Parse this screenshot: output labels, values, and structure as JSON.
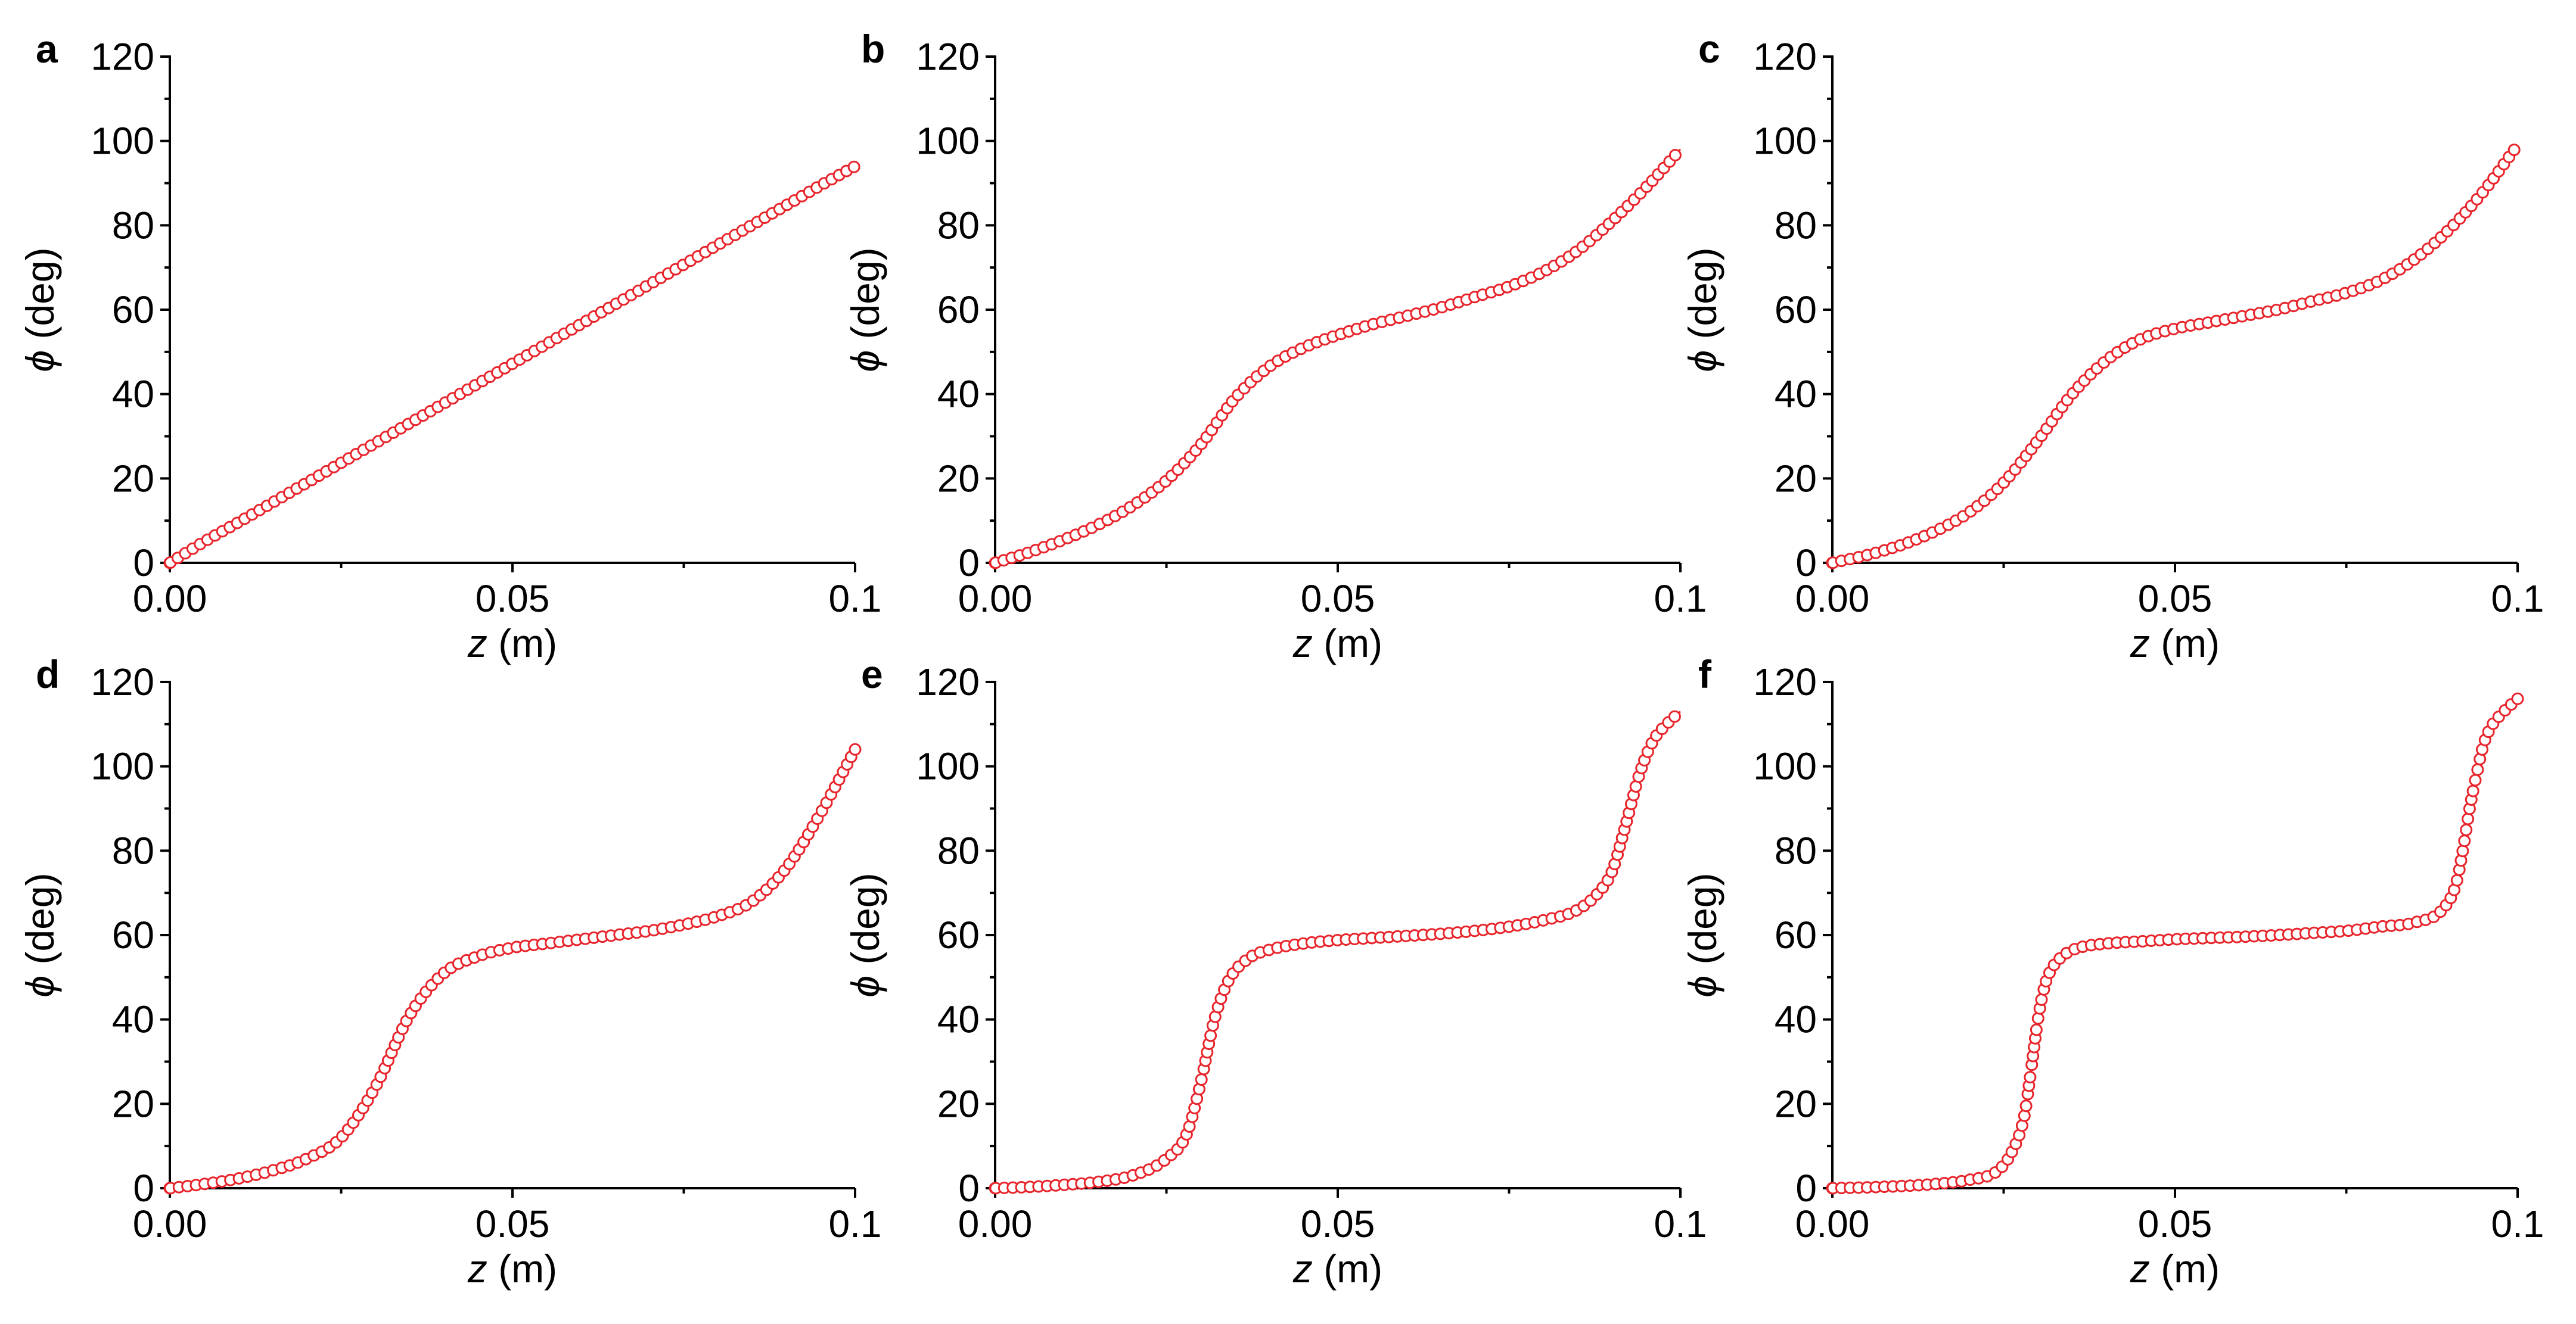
{
  "figure": {
    "marker_color": "#e8242b",
    "marker": "open-circle"
  },
  "chart_data": [
    {
      "panel": "a",
      "type": "scatter",
      "xlabel_symbol": "z",
      "xlabel_unit": " (m)",
      "ylabel_symbol": "ϕ",
      "ylabel_unit": " (deg)",
      "xlim": [
        0,
        0.1
      ],
      "ylim": [
        0,
        120
      ],
      "x_ticks": [
        "0.00",
        "0.05",
        "0.1"
      ],
      "y_ticks": [
        "0",
        "20",
        "40",
        "60",
        "80",
        "100",
        "120"
      ],
      "grid": false,
      "legend": "none",
      "series": [
        {
          "x": [
            0,
            0.005,
            0.01,
            0.015,
            0.02,
            0.025,
            0.03,
            0.035,
            0.04,
            0.045,
            0.05,
            0.055,
            0.06,
            0.065,
            0.07,
            0.075,
            0.08,
            0.085,
            0.09,
            0.095,
            0.1
          ],
          "y": [
            0,
            5,
            9.6,
            14.3,
            19,
            23.7,
            28.4,
            33.1,
            37.8,
            42.5,
            47.2,
            51.9,
            56.6,
            61.3,
            66,
            70.7,
            75.4,
            80.1,
            84.8,
            89.5,
            94
          ]
        }
      ]
    },
    {
      "panel": "b",
      "type": "scatter",
      "xlabel_symbol": "z",
      "xlabel_unit": " (m)",
      "ylabel_symbol": "ϕ",
      "ylabel_unit": " (deg)",
      "xlim": [
        0,
        0.1
      ],
      "ylim": [
        0,
        120
      ],
      "x_ticks": [
        "0.00",
        "0.05",
        "0.1"
      ],
      "y_ticks": [
        "0",
        "20",
        "40",
        "60",
        "80",
        "100",
        "120"
      ],
      "grid": false,
      "legend": "none",
      "series": [
        {
          "x": [
            0,
            0.005,
            0.01,
            0.015,
            0.02,
            0.025,
            0.03,
            0.035,
            0.04,
            0.045,
            0.05,
            0.055,
            0.06,
            0.065,
            0.07,
            0.075,
            0.08,
            0.085,
            0.09,
            0.095,
            0.1
          ],
          "y": [
            0,
            2.5,
            5.5,
            9,
            13.5,
            19.5,
            28,
            39,
            46.5,
            51,
            54,
            56.5,
            58.5,
            60.5,
            63,
            65.5,
            69,
            74,
            81,
            89,
            98
          ]
        }
      ]
    },
    {
      "panel": "c",
      "type": "scatter",
      "xlabel_symbol": "z",
      "xlabel_unit": " (m)",
      "ylabel_symbol": "ϕ",
      "ylabel_unit": " (deg)",
      "xlim": [
        0,
        0.1
      ],
      "ylim": [
        0,
        120
      ],
      "x_ticks": [
        "0.00",
        "0.05",
        "0.1"
      ],
      "y_ticks": [
        "0",
        "20",
        "40",
        "60",
        "80",
        "100",
        "120"
      ],
      "grid": false,
      "legend": "none",
      "series": [
        {
          "x": [
            0,
            0.005,
            0.01,
            0.015,
            0.02,
            0.025,
            0.03,
            0.035,
            0.04,
            0.045,
            0.05,
            0.055,
            0.06,
            0.065,
            0.07,
            0.075,
            0.08,
            0.085,
            0.09,
            0.095,
            0.1
          ],
          "y": [
            0,
            1.8,
            4.2,
            7.5,
            12,
            19,
            29,
            40,
            48,
            53,
            55.5,
            57,
            58.5,
            60,
            62,
            64,
            67,
            72,
            79,
            88,
            99
          ]
        }
      ]
    },
    {
      "panel": "d",
      "type": "scatter",
      "xlabel_symbol": "z",
      "xlabel_unit": " (m)",
      "ylabel_symbol": "ϕ",
      "ylabel_unit": " (deg)",
      "xlim": [
        0,
        0.1
      ],
      "ylim": [
        0,
        120
      ],
      "x_ticks": [
        "0.00",
        "0.05",
        "0.1"
      ],
      "y_ticks": [
        "0",
        "20",
        "40",
        "60",
        "80",
        "100",
        "120"
      ],
      "grid": false,
      "legend": "none",
      "series": [
        {
          "x": [
            0,
            0.005,
            0.01,
            0.015,
            0.02,
            0.025,
            0.03,
            0.035,
            0.04,
            0.045,
            0.05,
            0.055,
            0.06,
            0.065,
            0.07,
            0.075,
            0.08,
            0.085,
            0.09,
            0.095,
            0.1
          ],
          "y": [
            0,
            1,
            2.3,
            4.2,
            7,
            12,
            24,
            41,
            51,
            55,
            57,
            58,
            59,
            60,
            61,
            62.5,
            64.5,
            68,
            76,
            89,
            104
          ]
        }
      ]
    },
    {
      "panel": "e",
      "type": "scatter",
      "xlabel_symbol": "z",
      "xlabel_unit": " (m)",
      "ylabel_symbol": "ϕ",
      "ylabel_unit": " (deg)",
      "xlim": [
        0,
        0.1
      ],
      "ylim": [
        0,
        120
      ],
      "x_ticks": [
        "0.00",
        "0.05",
        "0.1"
      ],
      "y_ticks": [
        "0",
        "20",
        "40",
        "60",
        "80",
        "100",
        "120"
      ],
      "grid": false,
      "legend": "none",
      "series": [
        {
          "x": [
            0,
            0.005,
            0.01,
            0.015,
            0.02,
            0.025,
            0.028,
            0.03,
            0.032,
            0.034,
            0.037,
            0.04,
            0.045,
            0.05,
            0.055,
            0.06,
            0.065,
            0.07,
            0.075,
            0.08,
            0.085,
            0.088,
            0.09,
            0.092,
            0.094,
            0.096,
            0.098,
            0.1
          ],
          "y": [
            0,
            0.3,
            0.8,
            1.5,
            3,
            7,
            13,
            25,
            40,
            49,
            54.5,
            56.5,
            58,
            58.8,
            59.3,
            59.8,
            60.3,
            61,
            62,
            63.5,
            66,
            70,
            75,
            86,
            98,
            106,
            110,
            113
          ]
        }
      ]
    },
    {
      "panel": "f",
      "type": "scatter",
      "xlabel_symbol": "z",
      "xlabel_unit": " (m)",
      "ylabel_symbol": "ϕ",
      "ylabel_unit": " (deg)",
      "xlim": [
        0,
        0.1
      ],
      "ylim": [
        0,
        120
      ],
      "x_ticks": [
        "0.00",
        "0.05",
        "0.1"
      ],
      "y_ticks": [
        "0",
        "20",
        "40",
        "60",
        "80",
        "100",
        "120"
      ],
      "grid": false,
      "legend": "none",
      "series": [
        {
          "x": [
            0,
            0.005,
            0.01,
            0.015,
            0.02,
            0.024,
            0.026,
            0.028,
            0.029,
            0.03,
            0.031,
            0.032,
            0.034,
            0.036,
            0.04,
            0.045,
            0.05,
            0.055,
            0.06,
            0.065,
            0.07,
            0.075,
            0.08,
            0.085,
            0.089,
            0.091,
            0.092,
            0.093,
            0.094,
            0.095,
            0.096,
            0.098,
            0.1
          ],
          "y": [
            0,
            0.2,
            0.5,
            1,
            2,
            4,
            8,
            17,
            28,
            40,
            48,
            52,
            55.5,
            57,
            58,
            58.5,
            59,
            59.3,
            59.6,
            60,
            60.5,
            61,
            62,
            63,
            66,
            72,
            80,
            90,
            98,
            105,
            109,
            113,
            116
          ]
        }
      ]
    }
  ]
}
